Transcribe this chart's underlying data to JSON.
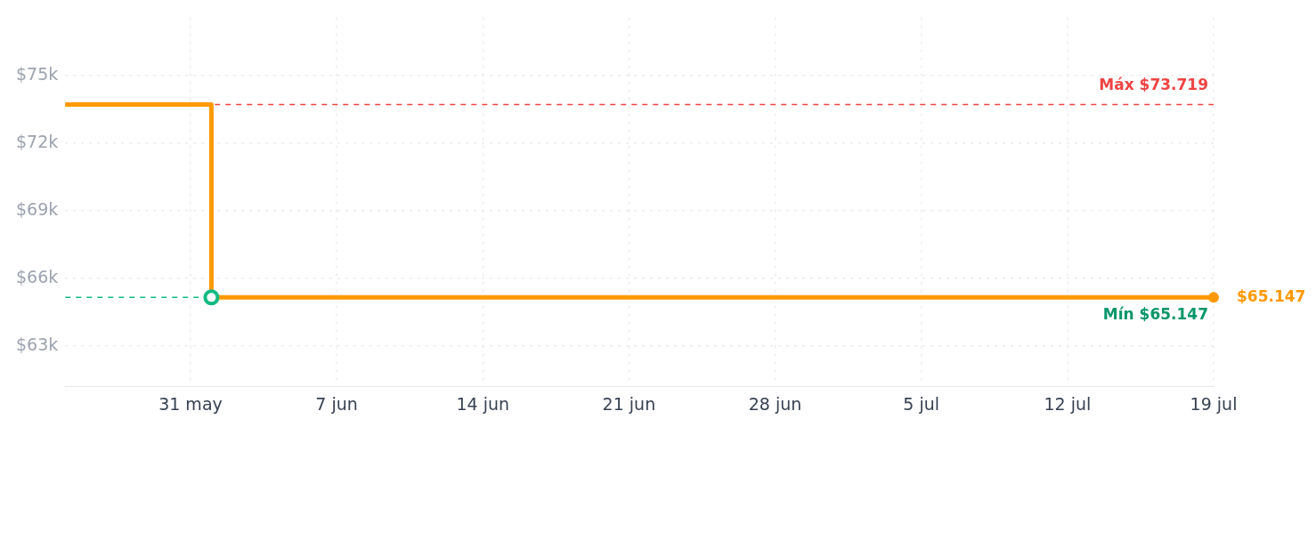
{
  "chart_data": {
    "type": "step",
    "x": [
      "--05-25",
      "--06-01",
      "--07-19"
    ],
    "series": [
      {
        "color": "#ff9900",
        "values": [
          73719,
          65147,
          65147
        ],
        "marker": "none"
      },
      {
        "type": "scatter",
        "color": "#ff9900",
        "x": [
          "--07-19"
        ],
        "values": [
          65147
        ],
        "marker": "circle",
        "value_labels": [
          "$65.147"
        ]
      },
      {
        "type": "scatter",
        "color": "#10b981",
        "x": [
          "--06-01"
        ],
        "values": [
          65147
        ],
        "marker": "circle"
      }
    ],
    "xlim": [
      "--05-25",
      "--07-19"
    ],
    "xticks": [
      {
        "value": "--05-31",
        "label": "31 may"
      },
      {
        "value": "--06-07",
        "label": "7 jun"
      },
      {
        "value": "--06-14",
        "label": "14 jun"
      },
      {
        "value": "--06-21",
        "label": "21 jun"
      },
      {
        "value": "--06-28",
        "label": "28 jun"
      },
      {
        "value": "--07-05",
        "label": "5 jul"
      },
      {
        "value": "--07-12",
        "label": "12 jul"
      },
      {
        "value": "--07-19",
        "label": "19 jul"
      }
    ],
    "ylim": [
      61200,
      77600
    ],
    "yticks": [
      {
        "value": 63000,
        "label": "$63k"
      },
      {
        "value": 66000,
        "label": "$66k"
      },
      {
        "value": 69000,
        "label": "$69k"
      },
      {
        "value": 72000,
        "label": "$72k"
      },
      {
        "value": 75000,
        "label": "$75k"
      }
    ],
    "ref_lines": [
      {
        "axis": "y",
        "value": 73719,
        "label": "Máx $73.719",
        "color": "#ef4444",
        "line_style": "dashed"
      },
      {
        "axis": "y",
        "value": 65147,
        "label": "Mín $65.147",
        "color": "#10b981",
        "line_style": "dashed"
      }
    ],
    "grid": true,
    "legend": false,
    "line_style": "solid"
  }
}
